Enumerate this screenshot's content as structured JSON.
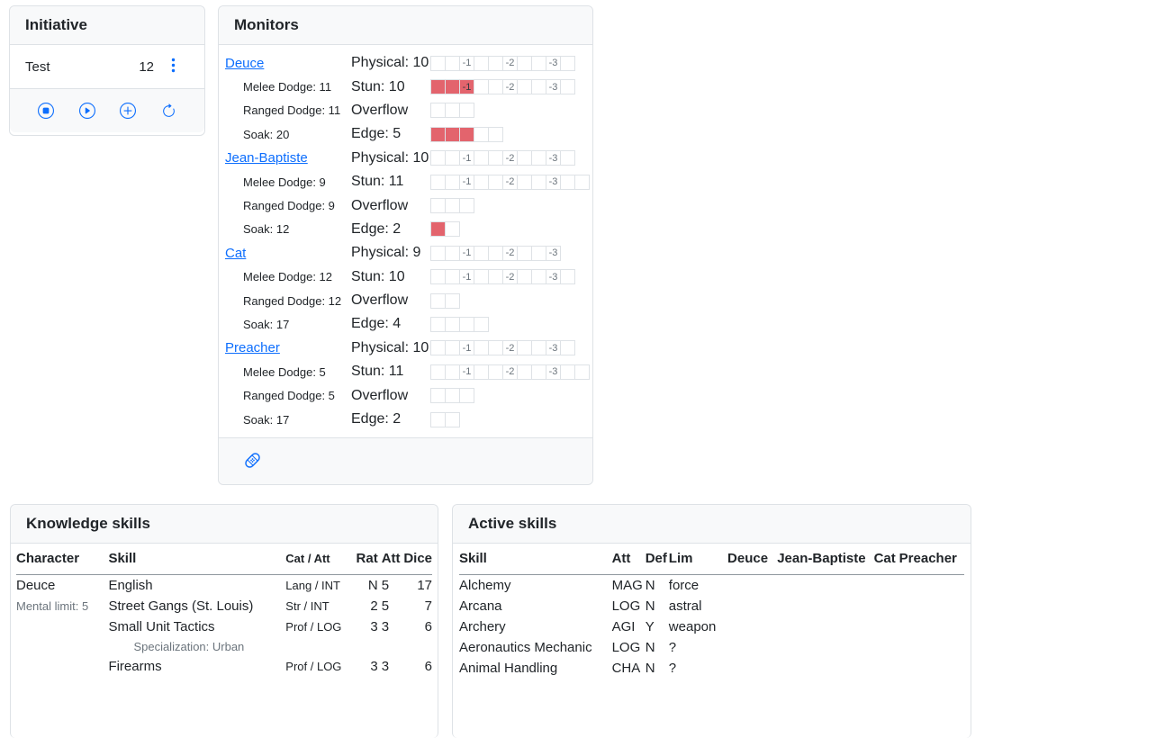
{
  "colors": {
    "accent_blue": "#0d6efd",
    "monitor_fill_red": "#e3646d",
    "muted_text": "#6c757d",
    "card_header_bg": "#f8f9fa",
    "border": "#dee2e6"
  },
  "initiative": {
    "title": "Initiative",
    "entries": [
      {
        "name": "Test",
        "value": "12"
      }
    ],
    "action_icons": [
      "stop-circle-icon",
      "play-circle-icon",
      "plus-circle-icon",
      "refresh-icon"
    ]
  },
  "monitors": {
    "title": "Monitors",
    "footer_icon": "bandage-icon",
    "box_penalty_labels": [
      "-1",
      "-2",
      "-3"
    ],
    "characters": [
      {
        "name": "Deuce",
        "melee_dodge": "Melee Dodge: 11",
        "ranged_dodge": "Ranged Dodge: 11",
        "soak": "Soak: 20",
        "physical_label": "Physical: 10",
        "stun_label": "Stun: 10",
        "overflow_label": "Overflow",
        "edge_label": "Edge: 5",
        "physical_boxes": 10,
        "physical_filled": 0,
        "stun_boxes": 10,
        "stun_filled": 3,
        "overflow_boxes": 3,
        "overflow_filled": 0,
        "edge_boxes": 5,
        "edge_filled": 3
      },
      {
        "name": "Jean-Baptiste",
        "melee_dodge": "Melee Dodge: 9",
        "ranged_dodge": "Ranged Dodge: 9",
        "soak": "Soak: 12",
        "physical_label": "Physical: 10",
        "stun_label": "Stun: 11",
        "overflow_label": "Overflow",
        "edge_label": "Edge: 2",
        "physical_boxes": 10,
        "physical_filled": 0,
        "stun_boxes": 11,
        "stun_filled": 0,
        "overflow_boxes": 3,
        "overflow_filled": 0,
        "edge_boxes": 2,
        "edge_filled": 1
      },
      {
        "name": "Cat",
        "melee_dodge": "Melee Dodge: 12",
        "ranged_dodge": "Ranged Dodge: 12",
        "soak": "Soak: 17",
        "physical_label": "Physical: 9",
        "stun_label": "Stun: 10",
        "overflow_label": "Overflow",
        "edge_label": "Edge: 4",
        "physical_boxes": 9,
        "physical_filled": 0,
        "stun_boxes": 10,
        "stun_filled": 0,
        "overflow_boxes": 2,
        "overflow_filled": 0,
        "edge_boxes": 4,
        "edge_filled": 0
      },
      {
        "name": "Preacher",
        "melee_dodge": "Melee Dodge: 5",
        "ranged_dodge": "Ranged Dodge: 5",
        "soak": "Soak: 17",
        "physical_label": "Physical: 10",
        "stun_label": "Stun: 11",
        "overflow_label": "Overflow",
        "edge_label": "Edge: 2",
        "physical_boxes": 10,
        "physical_filled": 0,
        "stun_boxes": 11,
        "stun_filled": 0,
        "overflow_boxes": 3,
        "overflow_filled": 0,
        "edge_boxes": 2,
        "edge_filled": 0
      }
    ]
  },
  "knowledge_skills": {
    "title": "Knowledge skills",
    "headers": {
      "character": "Character",
      "skill": "Skill",
      "cat_att": "Cat / Att",
      "rat": "Rat",
      "att": "Att",
      "dice": "Dice"
    },
    "rows": [
      {
        "character": "Deuce",
        "character_muted": false,
        "skill": "English",
        "cat_att": "Lang / INT",
        "rat": "N",
        "att": "5",
        "dice": "17"
      },
      {
        "character": "Mental limit: 5",
        "character_muted": true,
        "skill": "Street Gangs (St. Louis)",
        "cat_att": "Str / INT",
        "rat": "2",
        "att": "5",
        "dice": "7"
      },
      {
        "character": "",
        "skill": "Small Unit Tactics",
        "cat_att": "Prof / LOG",
        "rat": "3",
        "att": "3",
        "dice": "6"
      },
      {
        "specialization": "Specialization: Urban"
      },
      {
        "character": "",
        "skill": "Firearms",
        "cat_att": "Prof / LOG",
        "rat": "3",
        "att": "3",
        "dice": "6"
      }
    ]
  },
  "active_skills": {
    "title": "Active skills",
    "headers": [
      "Skill",
      "Att",
      "Def",
      "Lim",
      "Deuce",
      "Jean-Baptiste",
      "Cat",
      "Preacher"
    ],
    "rows": [
      [
        "Alchemy",
        "MAG",
        "N",
        "force",
        "",
        "",
        "",
        ""
      ],
      [
        "Arcana",
        "LOG",
        "N",
        "astral",
        "",
        "",
        "",
        ""
      ],
      [
        "Archery",
        "AGI",
        "Y",
        "weapon",
        "",
        "",
        "",
        ""
      ],
      [
        "Aeronautics Mechanic",
        "LOG",
        "N",
        "?",
        "",
        "",
        "",
        ""
      ],
      [
        "Animal Handling",
        "CHA",
        "N",
        "?",
        "",
        "",
        "",
        ""
      ]
    ]
  }
}
